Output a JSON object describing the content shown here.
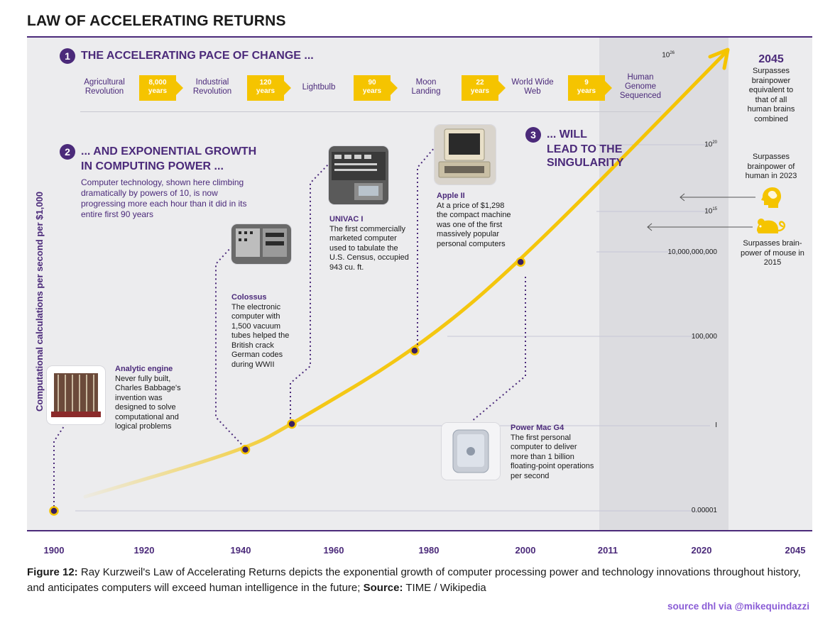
{
  "title": "LAW OF ACCELERATING RETURNS",
  "section1": {
    "num": "1",
    "heading": "THE ACCELERATING PACE OF CHANGE ..."
  },
  "milestones": [
    {
      "label": "Agricultural Revolution",
      "gap_value": "8,000",
      "gap_unit": "years"
    },
    {
      "label": "Industrial Revolution",
      "gap_value": "120",
      "gap_unit": "years"
    },
    {
      "label": "Lightbulb",
      "gap_value": "90",
      "gap_unit": "years"
    },
    {
      "label": "Moon Landing",
      "gap_value": "22",
      "gap_unit": "years"
    },
    {
      "label": "World Wide Web",
      "gap_value": "9",
      "gap_unit": "years"
    },
    {
      "label": "Human Genome Sequenced"
    }
  ],
  "section2": {
    "num": "2",
    "heading_line1": "... AND EXPONENTIAL GROWTH",
    "heading_line2": "IN COMPUTING POWER ...",
    "body": "Computer technology, shown here climbing dramatically by powers of 10, is now progressing more each hour than it did in its entire first 90 years"
  },
  "section3": {
    "num": "3",
    "heading_line1": "... WILL",
    "heading_line2": "LEAD TO THE",
    "heading_line3": "SINGULARITY"
  },
  "annotations": {
    "analytic": {
      "title": "Analytic engine",
      "text": "Never fully built, Charles Babbage's invention was designed to solve computational and logical problems"
    },
    "colossus": {
      "title": "Colossus",
      "text": "The electronic computer with 1,500 vacuum tubes helped the British crack German codes during WWII"
    },
    "univac": {
      "title": "UNIVAC I",
      "text": "The first commercially marketed computer used to tabulate the U.S. Census, occupied 943 cu. ft."
    },
    "apple": {
      "title": "Apple II",
      "text": "At a price of $1,298 the compact machine was one of the first massively popular personal computers"
    },
    "powermac": {
      "title": "Power Mac G4",
      "text": "The first personal computer to deliver more than 1 billion floating-point operations per second"
    }
  },
  "right_notes": {
    "year_2045": "2045",
    "note_2045": "Surpasses brainpower equivalent to that of all human brains combined",
    "note_human": "Surpasses brainpower of human in 2023",
    "note_mouse": "Surpasses brain-power of mouse in 2015"
  },
  "colors": {
    "purple": "#4b2a7a",
    "yellow": "#f5c400",
    "panel": "#ececee",
    "forecast_band": "#dcdce0"
  },
  "icons": [
    "human-head-icon",
    "mouse-icon",
    "arrow-left-icon"
  ],
  "chart_data": {
    "type": "line",
    "ylabel": "Computational calculations per second per $1,000",
    "y_ticks": [
      "0.00001",
      "I",
      "100,000",
      "10,000,000,000",
      "10",
      "10",
      "10"
    ],
    "y_tick_exponents": [
      "",
      "",
      "",
      "",
      "15",
      "20",
      "26"
    ],
    "x_ticks": [
      "1900",
      "1920",
      "1940",
      "1960",
      "1980",
      "2000",
      "2011",
      "2020",
      "2045"
    ],
    "log_scale": true,
    "points": [
      {
        "year": 1900,
        "log10_cps": -5
      },
      {
        "year": 1941,
        "log10_cps": -1.4
      },
      {
        "year": 1951,
        "log10_cps": 0.1
      },
      {
        "year": 1977,
        "log10_cps": 4.2
      },
      {
        "year": 1999,
        "log10_cps": 9.4
      }
    ],
    "trend_end": {
      "year": 2045,
      "log10_cps": 26
    },
    "grid": true
  },
  "caption": {
    "fig_label": "Figure 12:",
    "text": " Ray Kurzweil's Law of Accelerating Returns depicts the exponential growth of computer processing power and technology innovations throughout history, and anticipates computers will exceed human intelligence in the future; ",
    "source_label": "Source:",
    "source_text": " TIME / Wikipedia"
  },
  "credit": "source dhl via @mikequindazzi"
}
